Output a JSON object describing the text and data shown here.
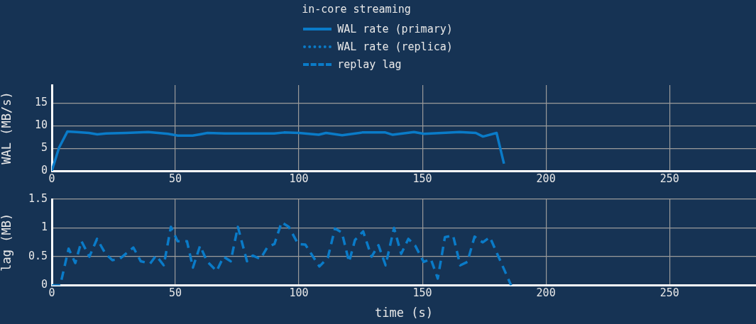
{
  "chart_data": [
    {
      "type": "line",
      "legend_title": "in-core streaming",
      "legend": "top",
      "ylabel": "WAL (MB/s)",
      "xlim": [
        0,
        285
      ],
      "xticks": [
        0,
        50,
        100,
        150,
        200,
        250
      ],
      "ylim": [
        0,
        19
      ],
      "yticks": [
        0,
        5,
        10,
        15
      ],
      "grid": true,
      "marker": "none",
      "series": [
        {
          "name": "WAL rate (primary)",
          "color": "#0a7bc8",
          "line_style": "solid",
          "x": [
            0,
            2.9,
            6.3,
            10,
            15,
            18.4,
            22,
            30,
            39,
            43,
            47,
            51,
            57,
            60,
            63,
            70,
            80,
            90,
            94,
            100,
            108,
            111,
            117.5,
            125.6,
            135,
            138,
            146.6,
            150.6,
            158,
            165,
            171.6,
            174.5,
            180,
            183
          ],
          "values": [
            0,
            5.1,
            8.7,
            8.6,
            8.4,
            8.1,
            8.3,
            8.4,
            8.6,
            8.4,
            8.2,
            7.8,
            7.8,
            8.1,
            8.4,
            8.3,
            8.3,
            8.3,
            8.5,
            8.4,
            8.0,
            8.4,
            7.9,
            8.5,
            8.5,
            8.0,
            8.6,
            8.2,
            8.4,
            8.6,
            8.4,
            7.6,
            8.4,
            1.6
          ]
        },
        {
          "name": "WAL rate (replica)",
          "color": "#0a7bc8",
          "line_style": "dotted"
        }
      ]
    },
    {
      "type": "line",
      "legend": "top",
      "xlabel": "time (s)",
      "ylabel": "lag (MB)",
      "xlim": [
        0,
        285
      ],
      "xticks": [
        0,
        50,
        100,
        150,
        200,
        250
      ],
      "ylim": [
        0,
        1.5
      ],
      "yticks": [
        0,
        0.5,
        1,
        1.5
      ],
      "grid": true,
      "marker": "none",
      "series": [
        {
          "name": "replay lag",
          "color": "#0a7bc8",
          "line_style": "dashed",
          "x": [
            0,
            3.4,
            6.8,
            9.5,
            12,
            15.2,
            18.3,
            21.6,
            24.5,
            27.4,
            33,
            36,
            39.8,
            42.2,
            45.3,
            48.2,
            50.9,
            54.7,
            57.1,
            60,
            62.8,
            66.7,
            69.5,
            72.4,
            75.3,
            79,
            81.3,
            84.4,
            87.3,
            90.1,
            93,
            95.9,
            99.7,
            102.6,
            108.3,
            111.7,
            114.6,
            117.4,
            120.3,
            122.7,
            126,
            129.4,
            132.2,
            135.1,
            138.5,
            141.4,
            144.3,
            147.1,
            150.5,
            153.4,
            156.2,
            159.1,
            162.4,
            165.3,
            168.2,
            171.1,
            174.4,
            177.3,
            185.9
          ],
          "values": [
            0,
            0,
            0.64,
            0.39,
            0.77,
            0.5,
            0.81,
            0.56,
            0.44,
            0.46,
            0.66,
            0.42,
            0.38,
            0.52,
            0.35,
            1.02,
            0.77,
            0.77,
            0.31,
            0.69,
            0.42,
            0.25,
            0.5,
            0.42,
            1.02,
            0.42,
            0.52,
            0.46,
            0.67,
            0.72,
            1.1,
            1.02,
            0.72,
            0.71,
            0.33,
            0.48,
            0.99,
            0.92,
            0.41,
            0.79,
            0.94,
            0.5,
            0.7,
            0.35,
            1.0,
            0.55,
            0.81,
            0.69,
            0.41,
            0.46,
            0.12,
            0.84,
            0.87,
            0.35,
            0.41,
            0.85,
            0.75,
            0.84,
            0
          ]
        }
      ]
    }
  ]
}
